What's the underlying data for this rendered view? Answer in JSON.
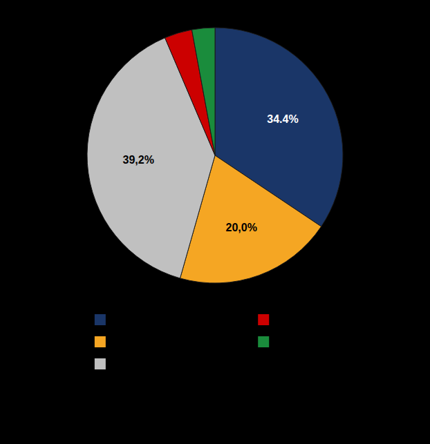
{
  "chart_data": {
    "type": "pie",
    "values": [
      34.4,
      20.0,
      39.2,
      3.5,
      2.9
    ],
    "value_labels": [
      "34.4%",
      "20,0%",
      "39,2%",
      null,
      null
    ],
    "colors": [
      "#1a3668",
      "#f5a623",
      "#c0c0c0",
      "#cc0000",
      "#1a8c3c"
    ],
    "data_labels": true,
    "legend": "bottom"
  }
}
